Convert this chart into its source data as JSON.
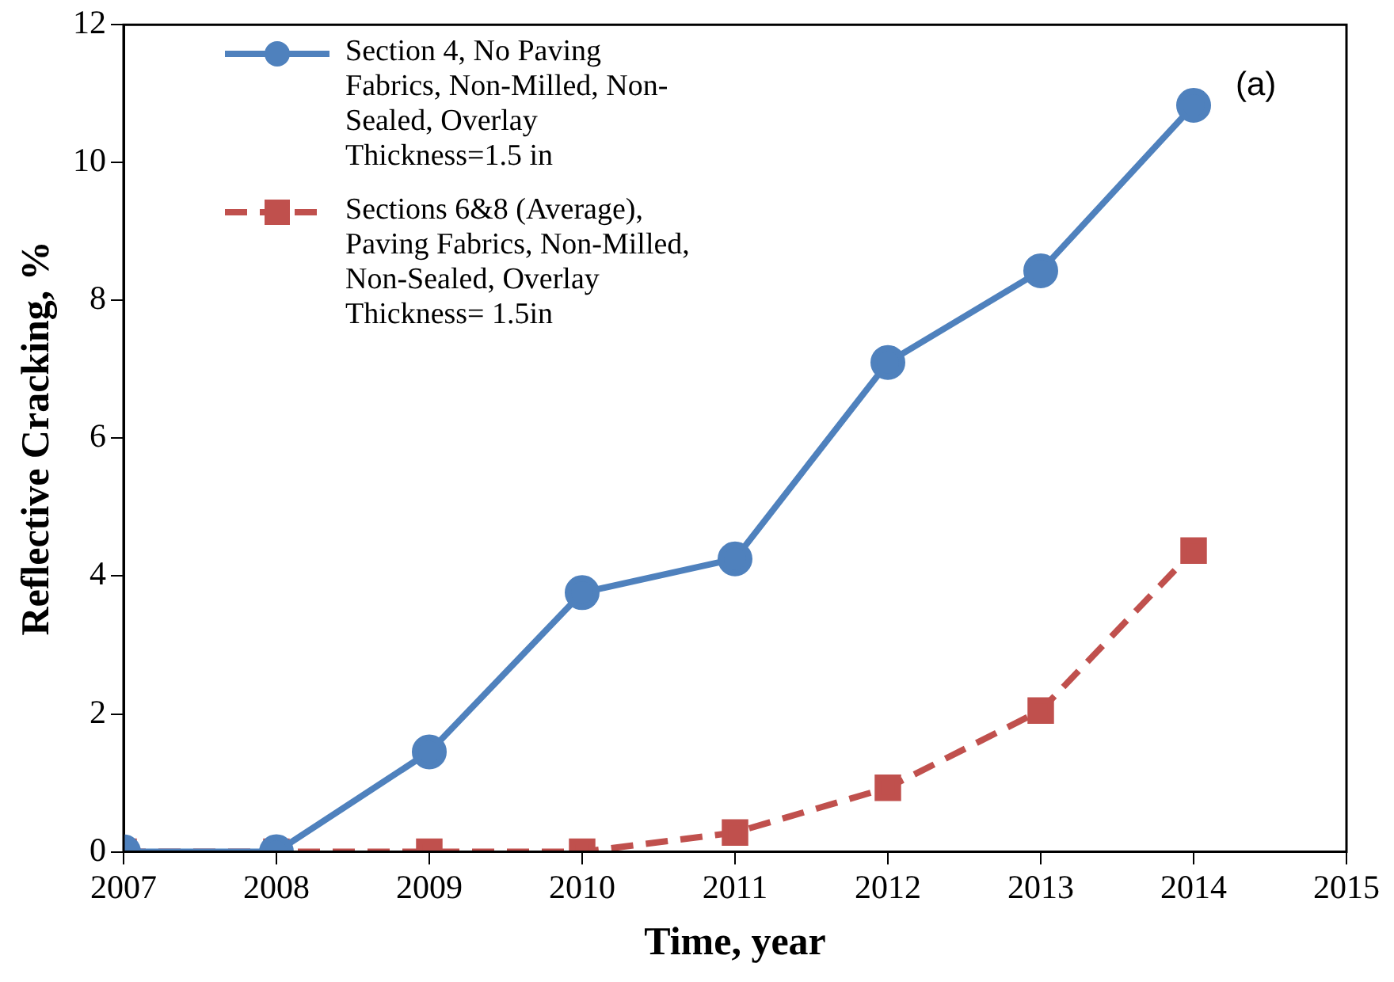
{
  "chart_data": {
    "type": "line",
    "xlabel": "Time, year",
    "ylabel": "Reflective Cracking, %",
    "x": [
      2007,
      2008,
      2009,
      2010,
      2011,
      2012,
      2013,
      2014
    ],
    "series": [
      {
        "name": "Section 4, No Paving Fabrics, Non-Milled, Non-Sealed, Overlay Thickness=1.5 in",
        "color": "#4f81bd",
        "values": [
          0,
          0,
          1.45,
          3.76,
          4.25,
          7.1,
          8.43,
          10.83
        ],
        "marker": "circle",
        "line_style": "solid"
      },
      {
        "name": "Sections 6&8 (Average), Paving Fabrics, Non-Milled, Non-Sealed, Overlay Thickness= 1.5in",
        "color": "#c0504d",
        "values": [
          0,
          0,
          0,
          0,
          0.28,
          0.93,
          2.05,
          4.37
        ],
        "marker": "square",
        "line_style": "dashed"
      }
    ],
    "annotations": [
      "(a)"
    ],
    "xlim": [
      2007,
      2015
    ],
    "xticks": [
      2007,
      2008,
      2009,
      2010,
      2011,
      2012,
      2013,
      2014,
      2015
    ],
    "ylim": [
      0,
      12
    ],
    "yticks": [
      0,
      2,
      4,
      6,
      8,
      10,
      12
    ],
    "grid": false,
    "legend": "top left"
  }
}
